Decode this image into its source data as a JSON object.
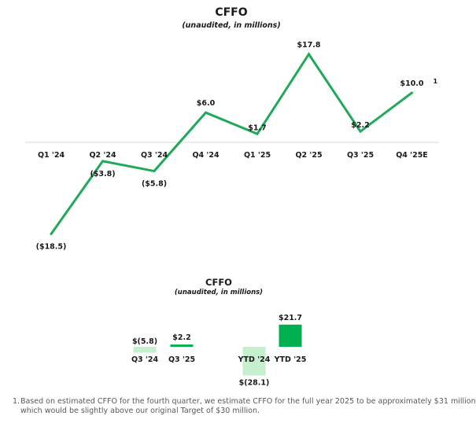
{
  "chart_data": [
    {
      "type": "line",
      "title": "CFFO",
      "subtitle": "(unaudited, in millions)",
      "categories": [
        "Q1 '24",
        "Q2 '24",
        "Q3 '24",
        "Q4 '24",
        "Q1 '25",
        "Q2 '25",
        "Q3 '25",
        "Q4 '25E"
      ],
      "values": [
        -18.5,
        -3.8,
        -5.8,
        6.0,
        1.7,
        17.8,
        2.2,
        10.0
      ],
      "value_labels": [
        "($18.5)",
        "($3.8)",
        "($5.8)",
        "$6.0",
        "$1.7",
        "$17.8",
        "$2.2",
        "$10.0"
      ],
      "annotations": [
        {
          "category": "Q4 '25E",
          "text": "1"
        }
      ],
      "color": "#1FAA59",
      "grid": false,
      "legend": "none"
    },
    {
      "type": "bar",
      "title": "CFFO",
      "subtitle": "(unaudited, in millions)",
      "categories": [
        "Q3 '24",
        "Q3 '25",
        "YTD '24",
        "YTD '25"
      ],
      "values": [
        -5.8,
        2.2,
        -28.1,
        21.7
      ],
      "value_labels": [
        "$(5.8)",
        "$2.2",
        "$(28.1)",
        "$21.7"
      ],
      "colors": {
        "positive": "#00B050",
        "negative": "#C6EFCE"
      },
      "grid": false,
      "legend": "none"
    }
  ],
  "footnote": {
    "number": "1.",
    "line1": "Based on estimated CFFO for the fourth quarter, we estimate CFFO for the full year 2025 to be approximately $31 million",
    "line2": "which would be slightly above our original Target of $30 million."
  }
}
